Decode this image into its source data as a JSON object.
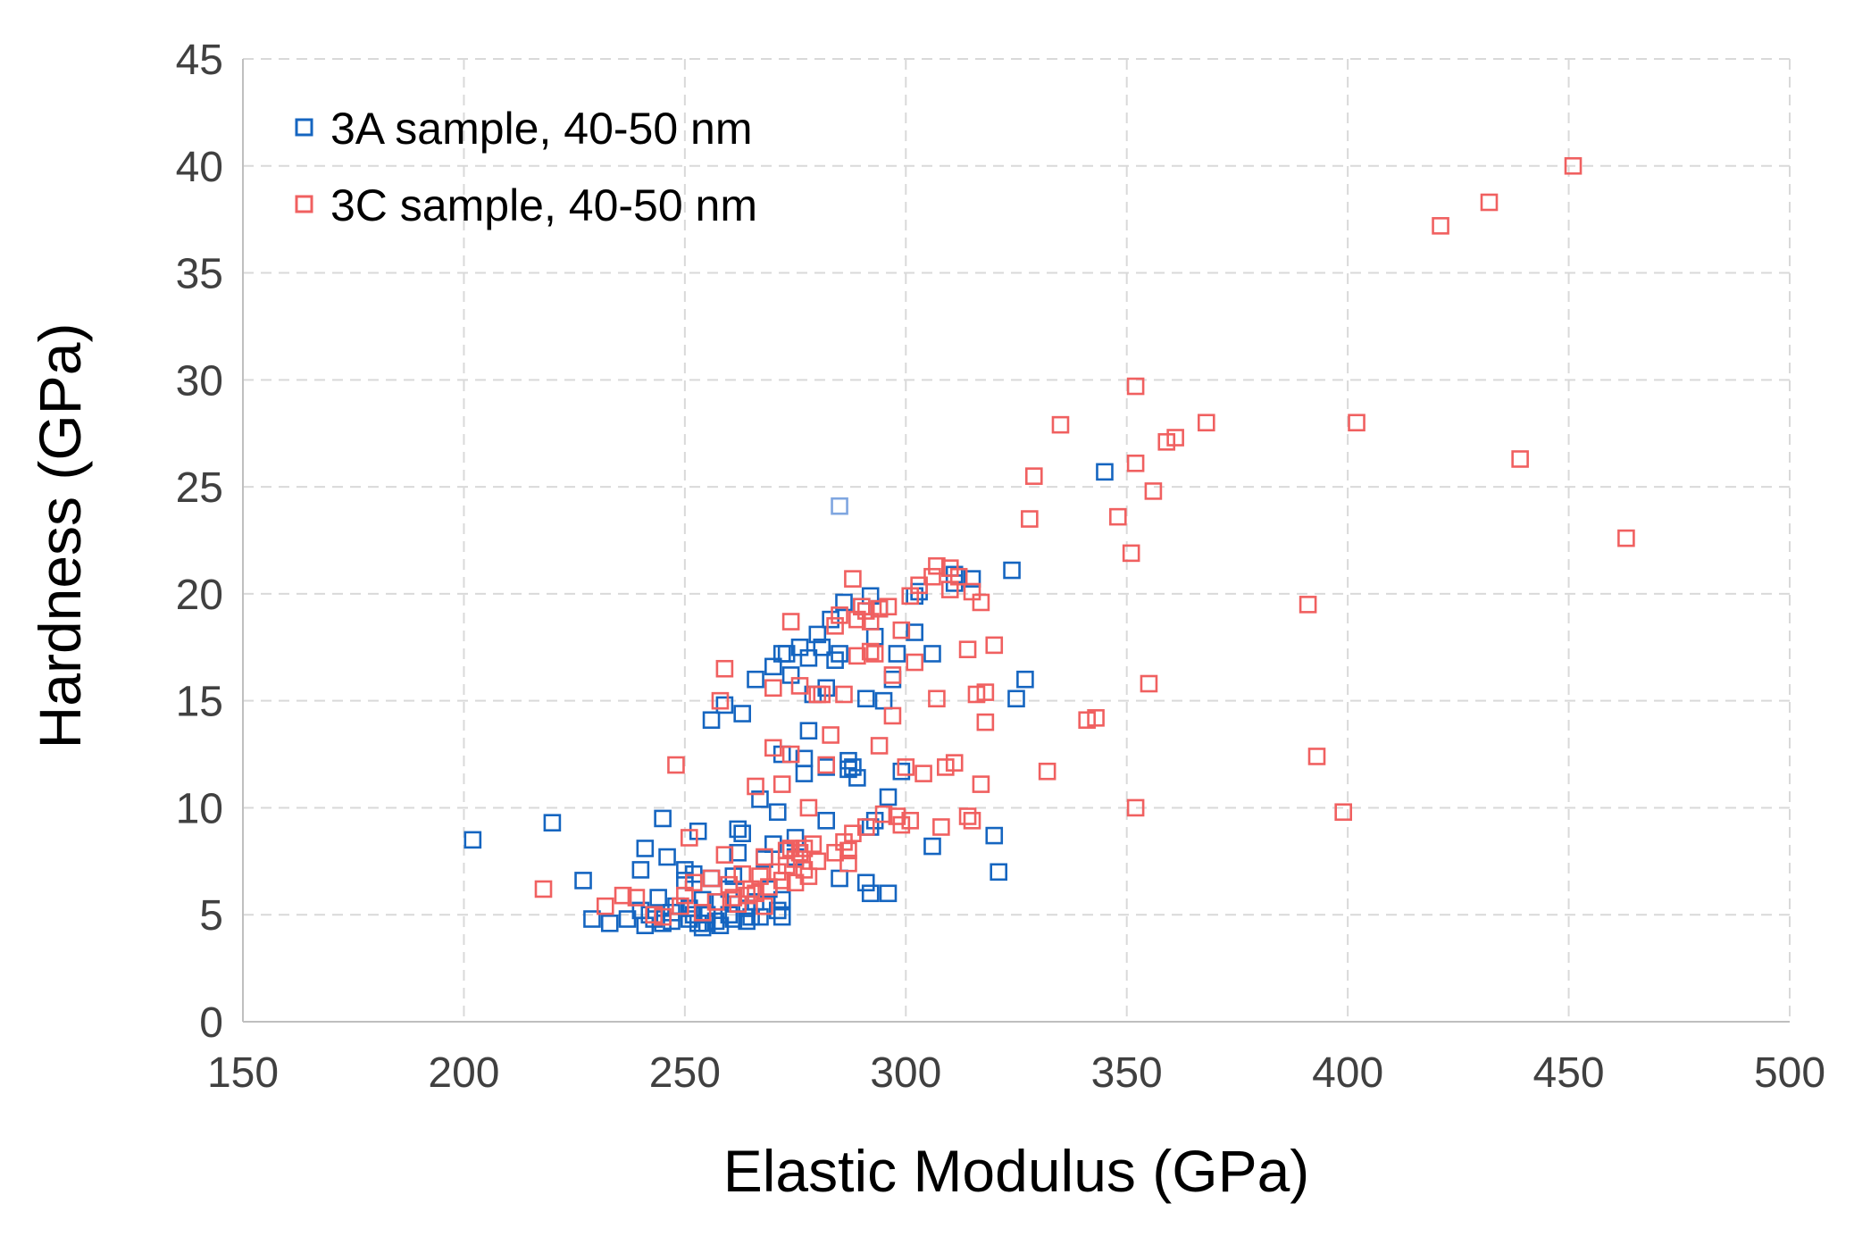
{
  "chart_data": {
    "type": "scatter",
    "title": "",
    "xlabel": "Elastic Modulus (GPa)",
    "ylabel": "Hardness (GPa)",
    "xlim": [
      150,
      500
    ],
    "ylim": [
      0,
      45
    ],
    "xticks": [
      150,
      200,
      250,
      300,
      350,
      400,
      450,
      500
    ],
    "yticks": [
      0,
      5,
      10,
      15,
      20,
      25,
      30,
      35,
      40,
      45
    ],
    "grid": true,
    "legend_position": "top-left",
    "series": [
      {
        "name": "3A sample, 40-50 nm",
        "color": "#1565C0",
        "marker": "open-square",
        "points": [
          [
            202,
            8.5
          ],
          [
            220,
            9.3
          ],
          [
            227,
            6.6
          ],
          [
            229,
            4.8
          ],
          [
            233,
            4.6
          ],
          [
            237,
            4.8
          ],
          [
            240,
            5.2
          ],
          [
            240,
            7.1
          ],
          [
            241,
            8.1
          ],
          [
            241,
            4.5
          ],
          [
            242,
            5.0
          ],
          [
            243,
            4.8
          ],
          [
            244,
            5.8
          ],
          [
            245,
            9.5
          ],
          [
            245,
            4.6
          ],
          [
            246,
            7.7
          ],
          [
            247,
            5.1
          ],
          [
            247,
            4.7
          ],
          [
            248,
            5.4
          ],
          [
            250,
            7.1
          ],
          [
            250,
            6.6
          ],
          [
            251,
            5.3
          ],
          [
            251,
            4.8
          ],
          [
            252,
            6.9
          ],
          [
            252,
            5.0
          ],
          [
            253,
            8.9
          ],
          [
            253,
            4.6
          ],
          [
            254,
            4.4
          ],
          [
            254,
            5.7
          ],
          [
            255,
            5.0
          ],
          [
            255,
            4.6
          ],
          [
            256,
            14.1
          ],
          [
            256,
            6.7
          ],
          [
            257,
            4.7
          ],
          [
            258,
            5.6
          ],
          [
            258,
            4.5
          ],
          [
            259,
            14.8
          ],
          [
            260,
            5.0
          ],
          [
            260,
            6.2
          ],
          [
            261,
            4.8
          ],
          [
            261,
            6.8
          ],
          [
            262,
            9.0
          ],
          [
            262,
            7.9
          ],
          [
            263,
            14.4
          ],
          [
            263,
            8.8
          ],
          [
            264,
            4.7
          ],
          [
            264,
            5.3
          ],
          [
            265,
            4.9
          ],
          [
            266,
            16.0
          ],
          [
            266,
            5.6
          ],
          [
            267,
            10.4
          ],
          [
            267,
            4.9
          ],
          [
            268,
            7.6
          ],
          [
            269,
            6.2
          ],
          [
            270,
            8.3
          ],
          [
            270,
            16.6
          ],
          [
            271,
            9.8
          ],
          [
            271,
            5.2
          ],
          [
            272,
            17.2
          ],
          [
            272,
            12.5
          ],
          [
            272,
            5.7
          ],
          [
            272,
            4.9
          ],
          [
            273,
            17.2
          ],
          [
            274,
            16.2
          ],
          [
            275,
            8.6
          ],
          [
            275,
            7.7
          ],
          [
            276,
            17.5
          ],
          [
            277,
            11.6
          ],
          [
            277,
            12.3
          ],
          [
            278,
            13.6
          ],
          [
            278,
            17.0
          ],
          [
            279,
            15.3
          ],
          [
            280,
            18.1
          ],
          [
            281,
            17.5
          ],
          [
            282,
            15.6
          ],
          [
            282,
            11.9
          ],
          [
            282,
            9.4
          ],
          [
            283,
            18.8
          ],
          [
            284,
            16.9
          ],
          [
            285,
            17.2
          ],
          [
            285,
            6.7
          ],
          [
            286,
            19.6
          ],
          [
            287,
            11.8
          ],
          [
            287,
            12.2
          ],
          [
            288,
            11.9
          ],
          [
            289,
            11.4
          ],
          [
            290,
            19.4
          ],
          [
            291,
            15.1
          ],
          [
            291,
            6.5
          ],
          [
            292,
            19.9
          ],
          [
            292,
            9.1
          ],
          [
            292,
            6.0
          ],
          [
            293,
            9.4
          ],
          [
            293,
            18.0
          ],
          [
            294,
            19.3
          ],
          [
            295,
            15.0
          ],
          [
            296,
            10.5
          ],
          [
            296,
            6.0
          ],
          [
            297,
            16.0
          ],
          [
            298,
            17.2
          ],
          [
            299,
            11.7
          ],
          [
            302,
            18.2
          ],
          [
            302,
            19.9
          ],
          [
            303,
            20.1
          ],
          [
            306,
            17.2
          ],
          [
            306,
            8.2
          ],
          [
            311,
            20.5
          ],
          [
            311,
            20.9
          ],
          [
            315,
            20.7
          ],
          [
            320,
            8.7
          ],
          [
            321,
            7.0
          ],
          [
            324,
            21.1
          ],
          [
            325,
            15.1
          ],
          [
            327,
            16.0
          ],
          [
            345,
            25.7
          ]
        ]
      },
      {
        "name": "3C sample, 40-50 nm",
        "color": "#F06060",
        "marker": "open-square",
        "points": [
          [
            218,
            6.2
          ],
          [
            232,
            5.4
          ],
          [
            236,
            5.9
          ],
          [
            239,
            5.8
          ],
          [
            243,
            5.0
          ],
          [
            245,
            4.9
          ],
          [
            248,
            12.0
          ],
          [
            249,
            5.4
          ],
          [
            250,
            5.9
          ],
          [
            251,
            8.6
          ],
          [
            252,
            6.5
          ],
          [
            254,
            5.1
          ],
          [
            256,
            6.7
          ],
          [
            257,
            5.6
          ],
          [
            258,
            15.0
          ],
          [
            259,
            16.5
          ],
          [
            259,
            7.8
          ],
          [
            260,
            6.4
          ],
          [
            261,
            5.8
          ],
          [
            262,
            5.5
          ],
          [
            263,
            6.9
          ],
          [
            264,
            5.9
          ],
          [
            265,
            6.2
          ],
          [
            266,
            11.0
          ],
          [
            266,
            6.0
          ],
          [
            267,
            6.8
          ],
          [
            268,
            7.7
          ],
          [
            268,
            5.4
          ],
          [
            269,
            6.3
          ],
          [
            270,
            15.6
          ],
          [
            270,
            12.8
          ],
          [
            271,
            7.0
          ],
          [
            272,
            11.1
          ],
          [
            272,
            6.6
          ],
          [
            273,
            7.3
          ],
          [
            273,
            8.0
          ],
          [
            274,
            18.7
          ],
          [
            274,
            8.1
          ],
          [
            274,
            12.5
          ],
          [
            275,
            7.6
          ],
          [
            275,
            6.5
          ],
          [
            276,
            7.9
          ],
          [
            276,
            15.7
          ],
          [
            277,
            8.1
          ],
          [
            277,
            7.1
          ],
          [
            278,
            10.0
          ],
          [
            278,
            6.8
          ],
          [
            279,
            8.3
          ],
          [
            280,
            7.5
          ],
          [
            280,
            15.3
          ],
          [
            281,
            15.3
          ],
          [
            282,
            12.0
          ],
          [
            283,
            13.4
          ],
          [
            284,
            18.5
          ],
          [
            284,
            7.9
          ],
          [
            285,
            19.0
          ],
          [
            286,
            8.4
          ],
          [
            286,
            15.3
          ],
          [
            287,
            8.0
          ],
          [
            287,
            7.4
          ],
          [
            288,
            20.7
          ],
          [
            288,
            8.8
          ],
          [
            289,
            17.1
          ],
          [
            289,
            18.8
          ],
          [
            290,
            19.4
          ],
          [
            291,
            19.2
          ],
          [
            291,
            9.1
          ],
          [
            292,
            17.3
          ],
          [
            292,
            18.7
          ],
          [
            293,
            17.2
          ],
          [
            294,
            12.9
          ],
          [
            294,
            19.3
          ],
          [
            295,
            9.7
          ],
          [
            296,
            19.4
          ],
          [
            297,
            14.3
          ],
          [
            297,
            16.2
          ],
          [
            298,
            9.6
          ],
          [
            299,
            18.3
          ],
          [
            299,
            9.2
          ],
          [
            300,
            11.9
          ],
          [
            301,
            9.4
          ],
          [
            301,
            19.9
          ],
          [
            302,
            16.8
          ],
          [
            303,
            20.4
          ],
          [
            304,
            11.6
          ],
          [
            306,
            20.8
          ],
          [
            307,
            15.1
          ],
          [
            307,
            21.3
          ],
          [
            308,
            9.1
          ],
          [
            309,
            11.9
          ],
          [
            310,
            20.2
          ],
          [
            310,
            21.2
          ],
          [
            311,
            12.1
          ],
          [
            312,
            20.8
          ],
          [
            314,
            17.4
          ],
          [
            314,
            9.6
          ],
          [
            315,
            9.4
          ],
          [
            315,
            20.1
          ],
          [
            316,
            15.3
          ],
          [
            317,
            19.6
          ],
          [
            317,
            11.1
          ],
          [
            318,
            15.4
          ],
          [
            318,
            14.0
          ],
          [
            320,
            17.6
          ],
          [
            328,
            23.5
          ],
          [
            329,
            25.5
          ],
          [
            332,
            11.7
          ],
          [
            335,
            27.9
          ],
          [
            341,
            14.1
          ],
          [
            343,
            14.2
          ],
          [
            348,
            23.6
          ],
          [
            351,
            21.9
          ],
          [
            352,
            29.7
          ],
          [
            352,
            26.1
          ],
          [
            352,
            10.0
          ],
          [
            355,
            15.8
          ],
          [
            356,
            24.8
          ],
          [
            359,
            27.1
          ],
          [
            361,
            27.3
          ],
          [
            368,
            28.0
          ],
          [
            391,
            19.5
          ],
          [
            393,
            12.4
          ],
          [
            399,
            9.8
          ],
          [
            402,
            28.0
          ],
          [
            421,
            37.2
          ],
          [
            432,
            38.3
          ],
          [
            439,
            26.3
          ],
          [
            451,
            40.0
          ],
          [
            463,
            22.6
          ]
        ]
      },
      {
        "name": "",
        "color": "#7FA6E0",
        "marker": "open-square",
        "points": [
          [
            285,
            24.1
          ]
        ]
      }
    ]
  }
}
